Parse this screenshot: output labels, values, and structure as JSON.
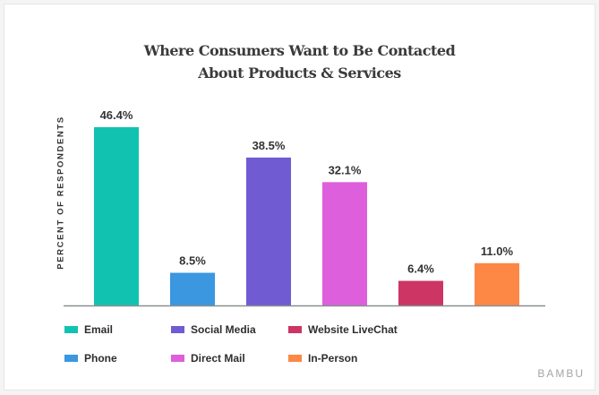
{
  "chart_data": {
    "type": "bar",
    "title_lines": [
      "Where Consumers Want to Be Contacted",
      "About Products & Services"
    ],
    "ylabel": "PERCENT OF RESPONDENTS",
    "xlabel": "",
    "categories": [
      "Email",
      "Phone",
      "Social Media",
      "Direct Mail",
      "Website LiveChat",
      "In-Person"
    ],
    "values": [
      46.4,
      8.5,
      38.5,
      32.1,
      6.4,
      11.0
    ],
    "data_labels": [
      "46.4%",
      "8.5%",
      "38.5%",
      "32.1%",
      "6.4%",
      "11.0%"
    ],
    "colors": [
      "#12c2b1",
      "#3a97e0",
      "#705bd3",
      "#de5fdb",
      "#cd3564",
      "#fd8845"
    ],
    "ylim": [
      0,
      50
    ],
    "grid": false,
    "legend_position": "bottom",
    "legend_order": [
      0,
      2,
      4,
      1,
      3,
      5
    ]
  },
  "brand": "BAMBU"
}
